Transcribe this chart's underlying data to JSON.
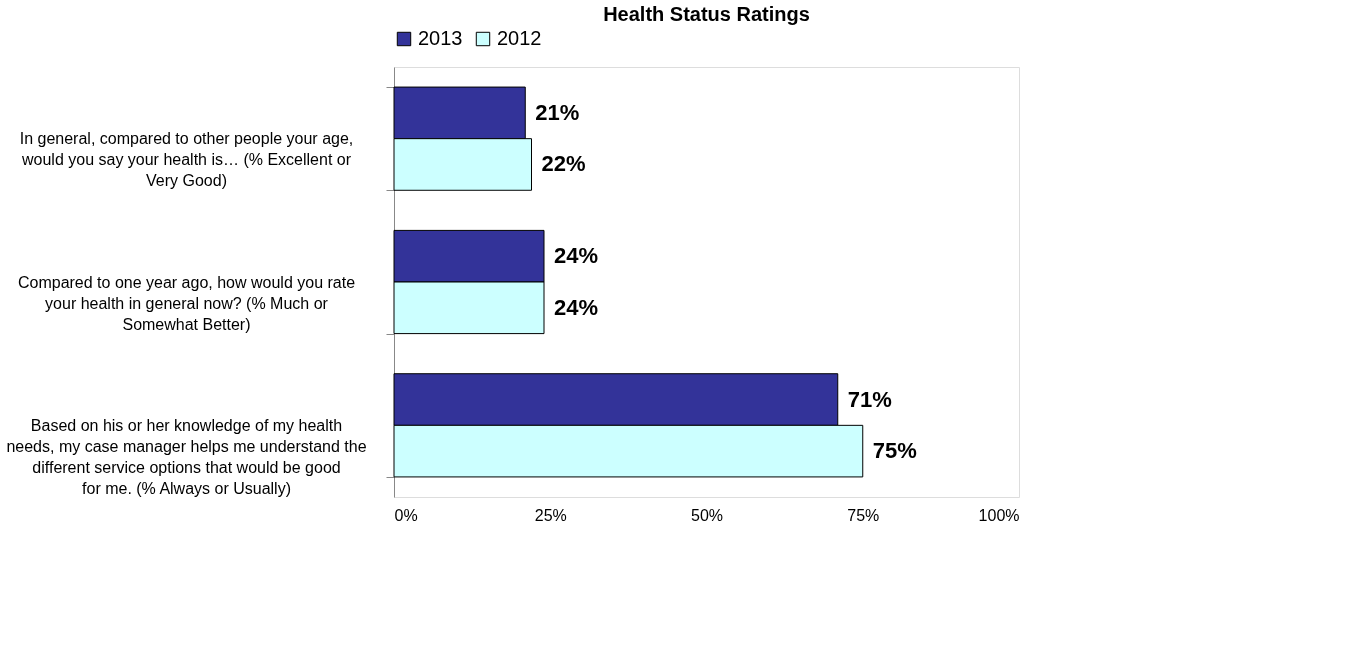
{
  "chart_data": {
    "type": "bar",
    "orientation": "horizontal",
    "title": "Health Status Ratings",
    "categories": [
      "In general, compared to other people your age, would you say your health is… (% Excellent or Very Good)",
      "Compared to one year ago, how would you rate your health in general now? (% Much or Somewhat Better)",
      "Based on his or her knowledge of my health needs, my case manager helps me understand the different service options that would be good for me. (% Always or Usually)"
    ],
    "series": [
      {
        "name": "2013",
        "color": "#333399",
        "values": [
          21,
          24,
          71
        ],
        "value_labels": [
          "21%",
          "24%",
          "71%"
        ]
      },
      {
        "name": "2012",
        "color": "#ccffff",
        "values": [
          22,
          24,
          75
        ],
        "value_labels": [
          "22%",
          "24%",
          "75%"
        ]
      }
    ],
    "xlim": [
      0,
      100
    ],
    "xticks": [
      {
        "value": 0,
        "label": "0%"
      },
      {
        "value": 25,
        "label": "25%"
      },
      {
        "value": 50,
        "label": "50%"
      },
      {
        "value": 75,
        "label": "75%"
      },
      {
        "value": 100,
        "label": "100%"
      }
    ],
    "grid": false,
    "legend": "top"
  }
}
